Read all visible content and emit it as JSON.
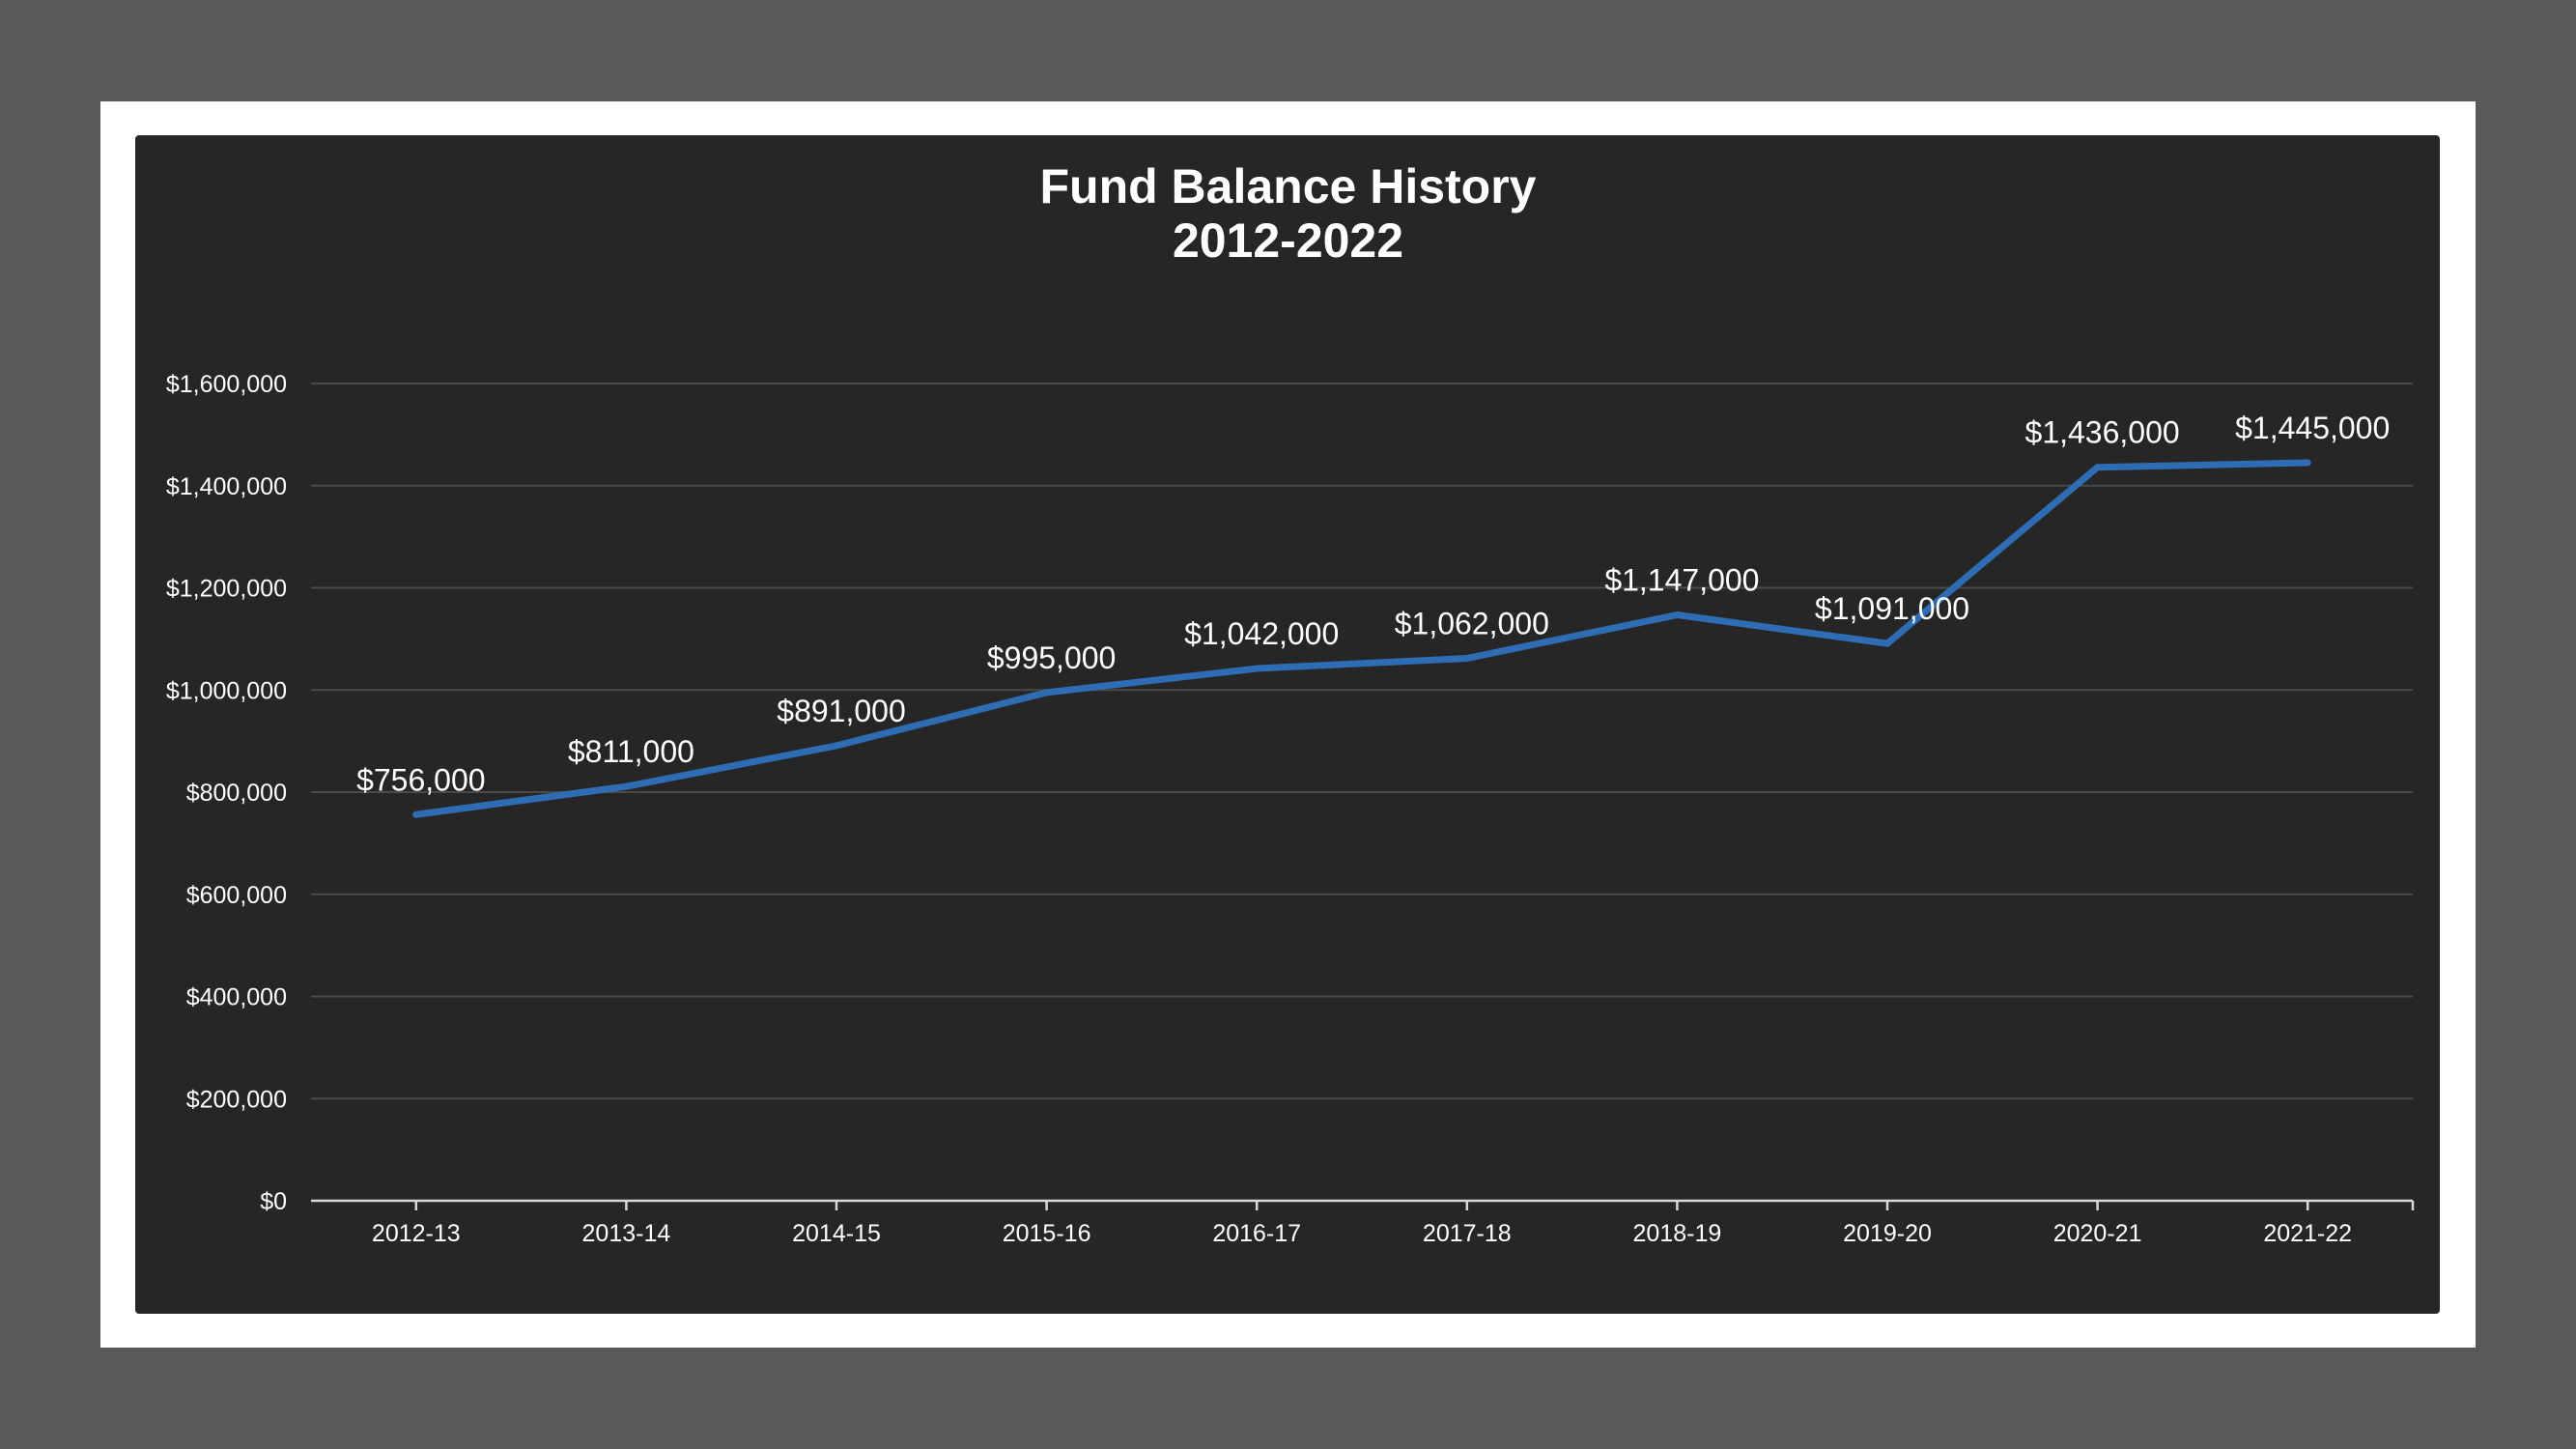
{
  "chart_data": {
    "type": "line",
    "title": "Fund Balance History",
    "subtitle": "2012-2022",
    "xlabel": "",
    "ylabel": "",
    "categories": [
      "2012-13",
      "2013-14",
      "2014-15",
      "2015-16",
      "2016-17",
      "2017-18",
      "2018-19",
      "2019-20",
      "2020-21",
      "2021-22"
    ],
    "series": [
      {
        "values": [
          756000,
          811000,
          891000,
          995000,
          1042000,
          1062000,
          1147000,
          1091000,
          1436000,
          1445000
        ],
        "labels": [
          "$756,000",
          "$811,000",
          "$891,000",
          "$995,000",
          "$1,042,000",
          "$1,062,000",
          "$1,147,000",
          "$1,091,000",
          "$1,436,000",
          "$1,445,000"
        ],
        "color": "#2E6DB4"
      }
    ],
    "ylim": [
      0,
      1600000
    ],
    "yticks": [
      0,
      200000,
      400000,
      600000,
      800000,
      1000000,
      1200000,
      1400000,
      1600000
    ],
    "ytick_labels": [
      "$0",
      "$200,000",
      "$400,000",
      "$600,000",
      "$800,000",
      "$1,000,000",
      "$1,200,000",
      "$1,400,000",
      "$1,600,000"
    ],
    "grid": true,
    "legend": "none"
  },
  "colors": {
    "page_background": "#595959",
    "frame": "#ffffff",
    "panel": "#262626",
    "gridline": "#4a4a4a",
    "axis": "#d9d9d9",
    "text": "#ffffff"
  }
}
